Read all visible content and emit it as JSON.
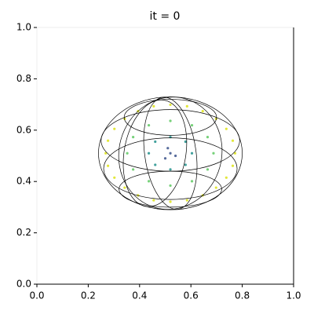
{
  "chart_data": {
    "type": "scatter",
    "title": "it = 0",
    "xlim": [
      0,
      1
    ],
    "ylim": [
      0,
      1
    ],
    "xticks": [
      {
        "value": 0,
        "label": "0.0"
      },
      {
        "value": 0.2,
        "label": "0.2"
      },
      {
        "value": 0.4,
        "label": "0.4"
      },
      {
        "value": 0.6,
        "label": "0.6"
      },
      {
        "value": 0.8,
        "label": "0.8"
      },
      {
        "value": 1,
        "label": "1.0"
      }
    ],
    "yticks": [
      {
        "value": 0,
        "label": "0.0"
      },
      {
        "value": 0.2,
        "label": "0.2"
      },
      {
        "value": 0.4,
        "label": "0.4"
      },
      {
        "value": 0.6,
        "label": "0.6"
      },
      {
        "value": 0.8,
        "label": "0.8"
      },
      {
        "value": 1,
        "label": "1.0"
      }
    ],
    "series": [
      {
        "color": "#dde318",
        "x": [
          0.772,
          0.763,
          0.738,
          0.698,
          0.646,
          0.585,
          0.52,
          0.455,
          0.394,
          0.342,
          0.302,
          0.277,
          0.268,
          0.277,
          0.302,
          0.342,
          0.394,
          0.455,
          0.52,
          0.585,
          0.646,
          0.698,
          0.738,
          0.763
        ],
        "y": [
          0.51,
          0.559,
          0.605,
          0.644,
          0.674,
          0.693,
          0.699,
          0.693,
          0.674,
          0.644,
          0.605,
          0.559,
          0.51,
          0.461,
          0.415,
          0.376,
          0.346,
          0.327,
          0.321,
          0.327,
          0.346,
          0.376,
          0.415,
          0.461
        ]
      },
      {
        "color": "#5ec962",
        "x": [
          0.688,
          0.665,
          0.604,
          0.52,
          0.436,
          0.375,
          0.352,
          0.375,
          0.436,
          0.52,
          0.604,
          0.665
        ],
        "y": [
          0.51,
          0.573,
          0.619,
          0.636,
          0.619,
          0.573,
          0.51,
          0.447,
          0.401,
          0.384,
          0.401,
          0.447
        ]
      },
      {
        "color": "#21918c",
        "x": [
          0.604,
          0.579,
          0.52,
          0.461,
          0.436,
          0.461,
          0.52,
          0.579
        ],
        "y": [
          0.51,
          0.555,
          0.573,
          0.555,
          0.51,
          0.465,
          0.447,
          0.465
        ]
      },
      {
        "color": "#3b528b",
        "x": [
          0.52,
          0.5,
          0.54,
          0.51
        ],
        "y": [
          0.51,
          0.49,
          0.5,
          0.53
        ]
      }
    ],
    "wireframe": [
      {
        "cx": 0.52,
        "cy": 0.51,
        "rx": 0.28,
        "ry": 0.22,
        "angle": 0
      },
      {
        "cx": 0.52,
        "cy": 0.65,
        "rx": 0.18,
        "ry": 0.07,
        "angle": 0
      },
      {
        "cx": 0.52,
        "cy": 0.56,
        "rx": 0.27,
        "ry": 0.12,
        "angle": 0
      },
      {
        "cx": 0.52,
        "cy": 0.45,
        "rx": 0.26,
        "ry": 0.12,
        "angle": 0
      },
      {
        "cx": 0.52,
        "cy": 0.37,
        "rx": 0.2,
        "ry": 0.07,
        "angle": 0
      },
      {
        "cx": 0.52,
        "cy": 0.51,
        "rx": 0.1,
        "ry": 0.22,
        "angle": -8
      },
      {
        "cx": 0.52,
        "cy": 0.51,
        "rx": 0.2,
        "ry": 0.22,
        "angle": 15
      },
      {
        "cx": 0.46,
        "cy": 0.51,
        "rx": 0.12,
        "ry": 0.21,
        "angle": 10
      }
    ]
  }
}
